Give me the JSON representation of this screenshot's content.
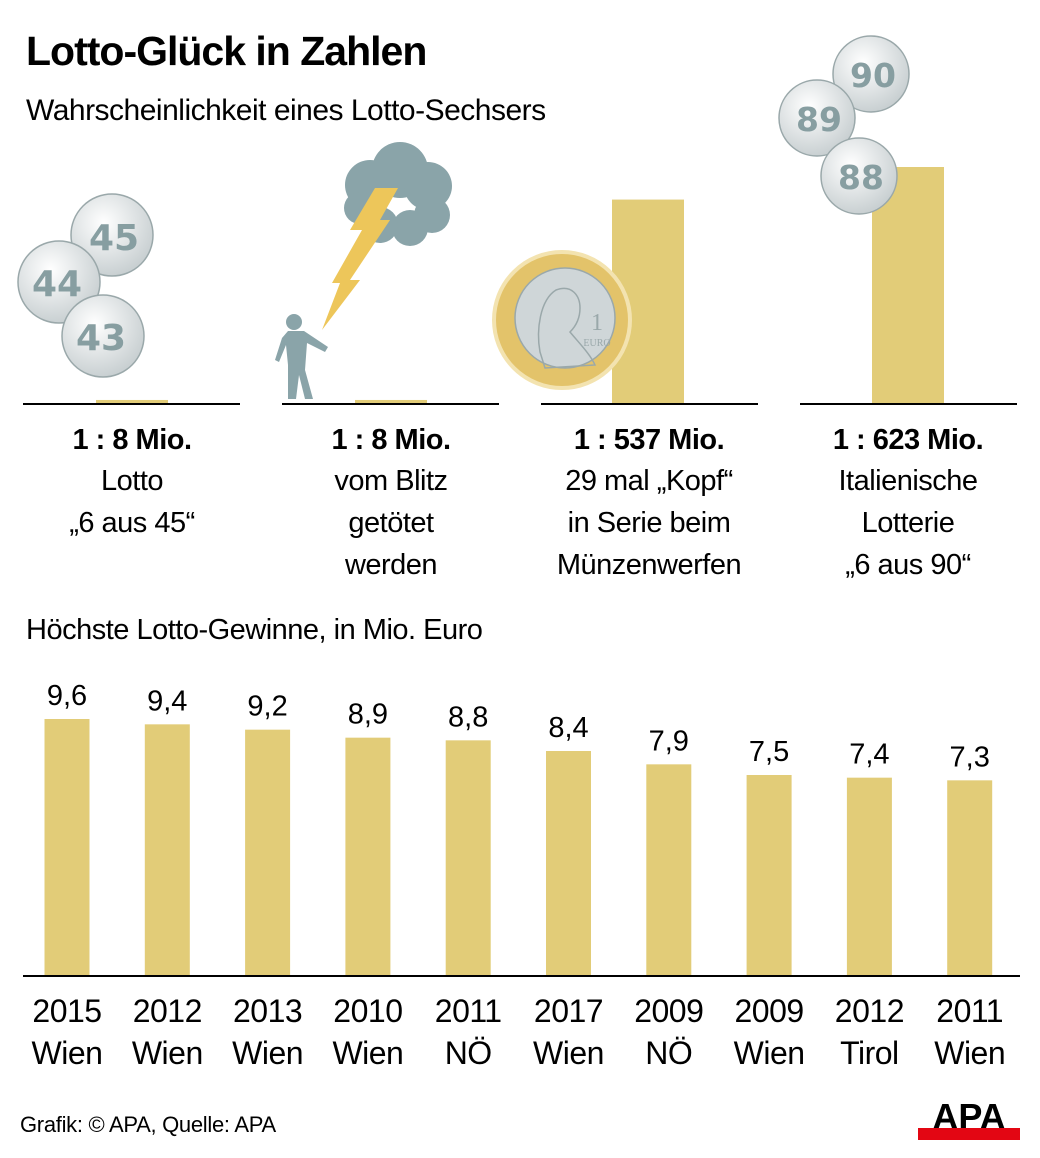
{
  "header": {
    "title": "Lotto-Glück in Zahlen",
    "subtitle": "Wahrscheinlichkeit eines Lotto-Sechsers"
  },
  "colors": {
    "bar": "#e2cc78",
    "ball_fill": "#dfe3e4",
    "ball_text": "#879ea1",
    "cloud": "#8aa4a9",
    "lightning": "#edc65a",
    "person": "#8aa4a9",
    "coin_ring": "#e3c36a",
    "logo_red": "#e30613"
  },
  "probabilities": [
    {
      "ratio": "1 : 8 Mio.",
      "lines": [
        "Lotto",
        "„6 aus 45“"
      ],
      "odds_millions": 8,
      "icon": "lotto-balls-43-44-45"
    },
    {
      "ratio": "1 : 8 Mio.",
      "lines": [
        "vom Blitz",
        "getötet",
        "werden"
      ],
      "odds_millions": 8,
      "icon": "lightning-person"
    },
    {
      "ratio": "1 : 537 Mio.",
      "lines": [
        "29 mal „Kopf“",
        "in Serie beim",
        "Münzenwerfen"
      ],
      "odds_millions": 537,
      "icon": "euro-coin"
    },
    {
      "ratio": "1 : 623 Mio.",
      "lines": [
        "Italienische",
        "Lotterie",
        "„6 aus 90“"
      ],
      "odds_millions": 623,
      "icon": "lotto-balls-88-89-90"
    }
  ],
  "balls_left": [
    "45",
    "44",
    "43"
  ],
  "balls_right": [
    "90",
    "89",
    "88"
  ],
  "coin": {
    "value": "1",
    "unit": "EURO"
  },
  "section2": {
    "title": "Höchste Lotto-Gewinne, in Mio. Euro"
  },
  "chart_data": [
    {
      "type": "bar",
      "title": "Wahrscheinlichkeit eines Lotto-Sechsers",
      "categories": [
        "Lotto „6 aus 45“",
        "vom Blitz getötet werden",
        "29 mal „Kopf“ in Serie beim Münzenwerfen",
        "Italienische Lotterie „6 aus 90“"
      ],
      "values": [
        8,
        8,
        537,
        623
      ],
      "labels": [
        "1 : 8 Mio.",
        "1 : 8 Mio.",
        "1 : 537 Mio.",
        "1 : 623 Mio."
      ],
      "unit": "Mio.",
      "xlabel": "",
      "ylabel": "",
      "grid": false
    },
    {
      "type": "bar",
      "title": "Höchste Lotto-Gewinne, in Mio. Euro",
      "categories": [
        "2015 Wien",
        "2012 Wien",
        "2013 Wien",
        "2010 Wien",
        "2011 NÖ",
        "2017 Wien",
        "2009 NÖ",
        "2009 Wien",
        "2012 Tirol",
        "2011 Wien"
      ],
      "years": [
        "2015",
        "2012",
        "2013",
        "2010",
        "2011",
        "2017",
        "2009",
        "2009",
        "2012",
        "2011"
      ],
      "regions": [
        "Wien",
        "Wien",
        "Wien",
        "Wien",
        "NÖ",
        "Wien",
        "NÖ",
        "Wien",
        "Tirol",
        "Wien"
      ],
      "values": [
        9.6,
        9.4,
        9.2,
        8.9,
        8.8,
        8.4,
        7.9,
        7.5,
        7.4,
        7.3
      ],
      "value_labels": [
        "9,6",
        "9,4",
        "9,2",
        "8,9",
        "8,8",
        "8,4",
        "7,9",
        "7,5",
        "7,4",
        "7,3"
      ],
      "ylim": [
        0,
        9.6
      ],
      "xlabel": "",
      "ylabel": "Mio. Euro",
      "grid": false
    }
  ],
  "footer": {
    "source": "Grafik: © APA, Quelle: APA",
    "logo": "APA"
  }
}
